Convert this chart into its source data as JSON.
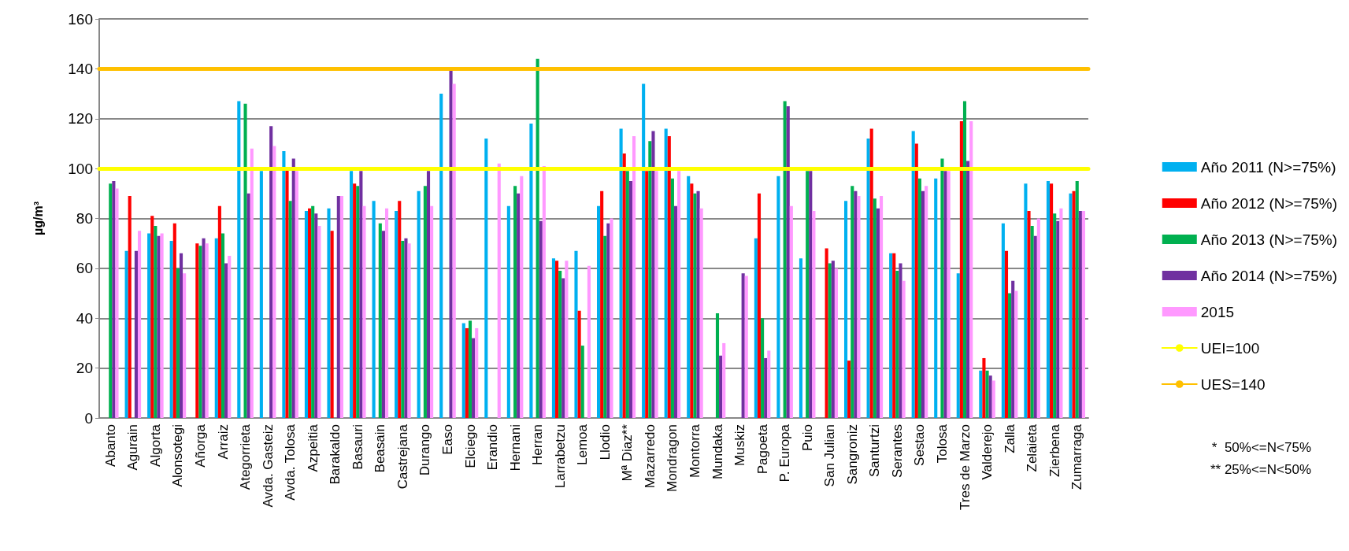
{
  "chart_data": {
    "type": "bar",
    "ylabel": "µg/m³",
    "categories": [
      "Abanto",
      "Agurain",
      "Algorta",
      "Alonsotegi",
      "Añorga",
      "Arraiz",
      "Ategorrieta",
      "Avda. Gasteiz",
      "Avda. Tolosa",
      "Azpeitia",
      "Barakaldo",
      "Basauri",
      "Beasain",
      "Castrejana",
      "Durango",
      "Easo",
      "Elciego",
      "Erandio",
      "Hernani",
      "Herran",
      "Larrabetzu",
      "Lemoa",
      "Llodio",
      "Mª Diaz**",
      "Mazarredo",
      "Mondragon",
      "Montorra",
      "Mundaka",
      "Muskiz",
      "Pagoeta",
      "P. Europa",
      "Puio",
      "San Julian",
      "Sangroniz",
      "Santurtzi",
      "Serantes",
      "Sestao",
      "Tolosa",
      "Tres de Marzo",
      "Valderejo",
      "Zalla",
      "Zelaieta",
      "Zierbena",
      "Zumarraga"
    ],
    "series": [
      {
        "name": "Año 2011 (N>=75%)",
        "color": "#00b0f0",
        "values": [
          null,
          67,
          74,
          71,
          null,
          72,
          127,
          99,
          107,
          83,
          84,
          99,
          87,
          83,
          91,
          130,
          38,
          112,
          85,
          118,
          64,
          67,
          85,
          116,
          134,
          116,
          97,
          null,
          null,
          72,
          97,
          64,
          null,
          87,
          112,
          66,
          115,
          96,
          58,
          19,
          78,
          94,
          95,
          90
        ]
      },
      {
        "name": "Año 2012 (N>=75%)",
        "color": "#ff0000",
        "values": [
          null,
          89,
          81,
          78,
          70,
          85,
          null,
          null,
          100,
          84,
          75,
          94,
          null,
          87,
          null,
          null,
          36,
          null,
          null,
          null,
          63,
          43,
          91,
          106,
          99,
          113,
          94,
          null,
          null,
          90,
          null,
          null,
          68,
          23,
          116,
          66,
          110,
          null,
          119,
          24,
          67,
          83,
          94,
          91
        ]
      },
      {
        "name": "Año 2013 (N>=75%)",
        "color": "#00b050",
        "values": [
          94,
          null,
          77,
          60,
          69,
          74,
          126,
          null,
          87,
          85,
          null,
          93,
          78,
          71,
          93,
          null,
          39,
          null,
          93,
          144,
          59,
          29,
          73,
          99,
          111,
          96,
          90,
          42,
          null,
          40,
          127,
          99,
          62,
          93,
          88,
          59,
          96,
          104,
          127,
          19,
          50,
          77,
          82,
          95
        ]
      },
      {
        "name": "Año 2014 (N>=75%)",
        "color": "#7030a0",
        "values": [
          95,
          67,
          73,
          66,
          72,
          62,
          90,
          117,
          104,
          82,
          89,
          99,
          75,
          72,
          99,
          140,
          32,
          null,
          90,
          79,
          56,
          null,
          78,
          95,
          115,
          85,
          91,
          25,
          58,
          24,
          125,
          99,
          63,
          91,
          84,
          62,
          91,
          99,
          103,
          17,
          55,
          73,
          79,
          83
        ]
      },
      {
        "name": "2015",
        "color": "#ff99ff",
        "values": [
          92,
          75,
          74,
          58,
          70,
          65,
          108,
          109,
          99,
          77,
          89,
          85,
          84,
          70,
          85,
          134,
          36,
          102,
          97,
          101,
          63,
          61,
          80,
          113,
          99,
          99,
          84,
          30,
          57,
          27,
          85,
          83,
          60,
          89,
          89,
          55,
          93,
          99,
          119,
          15,
          51,
          80,
          84,
          83
        ]
      }
    ],
    "ylim": [
      0,
      160
    ],
    "yticks": [
      0,
      20,
      40,
      60,
      80,
      100,
      120,
      140,
      160
    ],
    "grid": "y",
    "legend": "right",
    "ref_lines": [
      {
        "axis": "y",
        "value": 100,
        "label": "UEI=100",
        "color": "#ffff00"
      },
      {
        "axis": "y",
        "value": 140,
        "label": "UES=140",
        "color": "#ffc000"
      }
    ],
    "annotations": [
      "*  50%<=N<75%",
      "** 25%<=N<50%"
    ]
  }
}
